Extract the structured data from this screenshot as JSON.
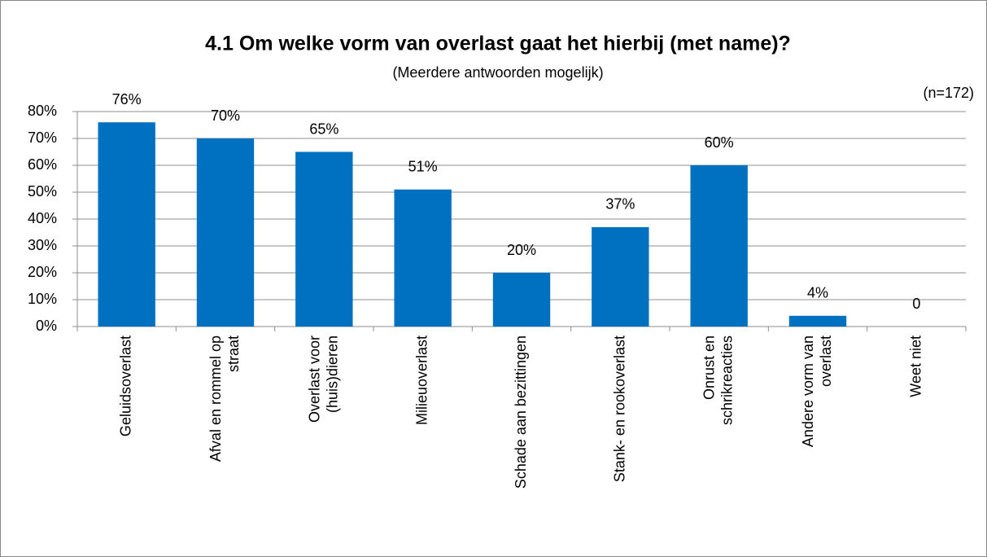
{
  "chart_data": {
    "type": "bar",
    "title": "4.1 Om welke vorm van overlast gaat het hierbij (met name)?",
    "subtitle": "(Meerdere antwoorden mogelijk)",
    "annotation": "(n=172)",
    "categories": [
      "Geluidsoverlast",
      "Afval en rommel op straat",
      "Overlast voor (huis)dieren",
      "Milieuoverlast",
      "Schade aan bezittingen",
      "Stank- en rookoverlast",
      "Onrust en schrikreacties",
      "Andere vorm van overlast",
      "Weet niet"
    ],
    "values": [
      76,
      70,
      65,
      51,
      20,
      37,
      60,
      4,
      0
    ],
    "value_labels": [
      "76%",
      "70%",
      "65%",
      "51%",
      "20%",
      "37%",
      "60%",
      "4%",
      "0"
    ],
    "color": "#0070c0",
    "ylim": [
      0,
      80
    ],
    "yticks": [
      {
        "value": 0,
        "label": "0%"
      },
      {
        "value": 10,
        "label": "10%"
      },
      {
        "value": 20,
        "label": "20%"
      },
      {
        "value": 30,
        "label": "30%"
      },
      {
        "value": 40,
        "label": "40%"
      },
      {
        "value": 50,
        "label": "50%"
      },
      {
        "value": 60,
        "label": "60%"
      },
      {
        "value": 70,
        "label": "70%"
      },
      {
        "value": 80,
        "label": "80%"
      }
    ],
    "grid": true
  }
}
